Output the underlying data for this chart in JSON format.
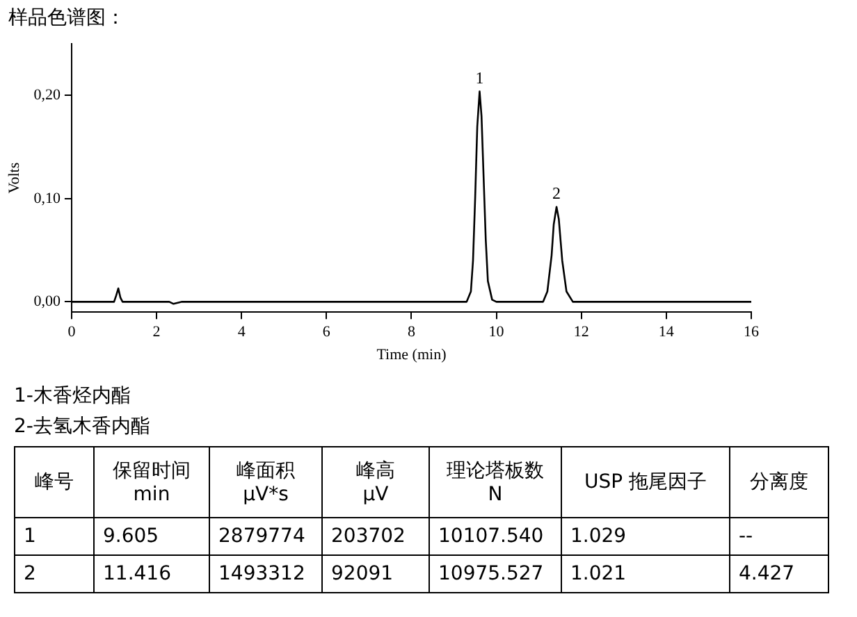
{
  "chart_data": {
    "type": "line",
    "title": "样品色谱图：",
    "xlabel": "Time (min)",
    "ylabel": "Volts",
    "x": [
      0,
      1.0,
      1.05,
      1.1,
      1.15,
      1.2,
      2.3,
      2.4,
      2.5,
      2.6,
      9.3,
      9.4,
      9.45,
      9.5,
      9.55,
      9.605,
      9.65,
      9.7,
      9.75,
      9.8,
      9.9,
      10.0,
      11.1,
      11.2,
      11.3,
      11.35,
      11.416,
      11.47,
      11.55,
      11.65,
      11.8,
      16
    ],
    "values": [
      0,
      0,
      0.006,
      0.013,
      0.004,
      0,
      0,
      -0.002,
      -0.001,
      0,
      0,
      0.01,
      0.04,
      0.1,
      0.17,
      0.204,
      0.18,
      0.12,
      0.06,
      0.02,
      0.002,
      0,
      0,
      0.01,
      0.045,
      0.075,
      0.092,
      0.08,
      0.04,
      0.01,
      0,
      0
    ],
    "color": "#000000",
    "xlim": [
      0,
      16
    ],
    "xticks": [
      0,
      2,
      4,
      6,
      8,
      10,
      12,
      14,
      16
    ],
    "ylim": [
      -0.01,
      0.25
    ],
    "yticks": [
      {
        "value": 0,
        "label": "0,00"
      },
      {
        "value": 0.1,
        "label": "0,10"
      },
      {
        "value": 0.2,
        "label": "0,20"
      }
    ],
    "grid": false,
    "legend": false,
    "marker": "none",
    "line_style": "solid",
    "annotations": [
      {
        "text": "1",
        "x": 9.605,
        "y": 0.204
      },
      {
        "text": "2",
        "x": 11.416,
        "y": 0.092
      },
      "1-木香烃内酯",
      "2-去氢木香内酯",
      "峰号",
      "保留时间\nmin",
      "峰面积\nµV*s",
      "峰高\nµV",
      "理论塔板数\nN",
      "USP 拖尾因子",
      "分离度",
      "1",
      "9.605",
      "2879774",
      "203702",
      "10107.540",
      "1.029",
      "--",
      "2",
      "11.416",
      "1493312",
      "92091",
      "10975.527",
      "1.021",
      "4.427"
    ]
  }
}
